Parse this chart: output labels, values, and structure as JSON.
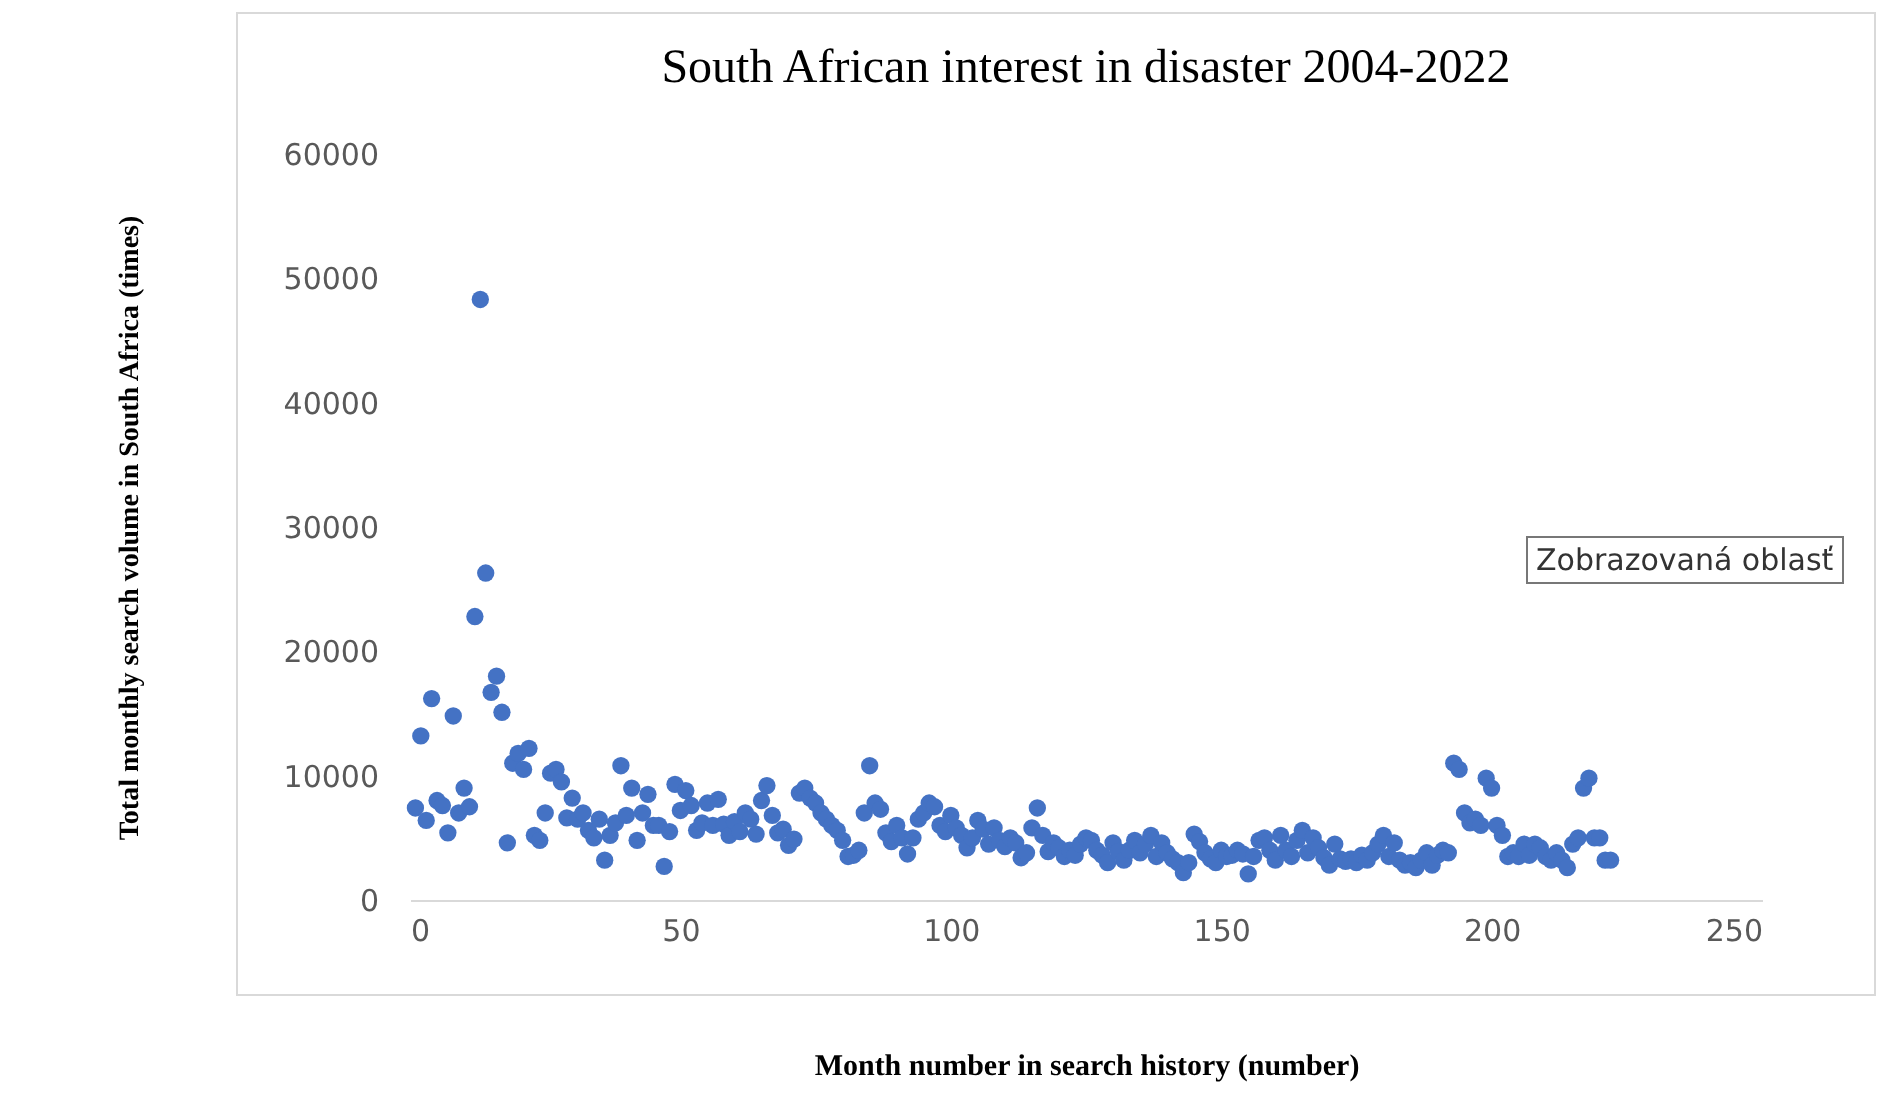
{
  "chart_data": {
    "type": "scatter",
    "title": "South African interest in disaster 2004-2022",
    "xlabel": "Month number in search history (number)",
    "ylabel": "Total monthly search volume in South Africa (times)",
    "annotations": [
      "Zobrazovaná oblasť"
    ],
    "x": [
      1,
      2,
      3,
      4,
      5,
      6,
      7,
      8,
      9,
      10,
      11,
      12,
      13,
      14,
      15,
      16,
      17,
      18,
      19,
      20,
      21,
      22,
      23,
      24,
      25,
      26,
      27,
      28,
      29,
      30,
      31,
      32,
      33,
      34,
      35,
      36,
      37,
      38,
      39,
      40,
      41,
      42,
      43,
      44,
      45,
      46,
      47,
      48,
      49,
      50,
      51,
      52,
      53,
      54,
      55,
      56,
      57,
      58,
      59,
      60,
      61,
      62,
      63,
      64,
      65,
      66,
      67,
      68,
      69,
      70,
      71,
      72,
      73,
      74,
      75,
      76,
      77,
      78,
      79,
      80,
      81,
      82,
      83,
      84,
      85,
      86,
      87,
      88,
      89,
      90,
      91,
      92,
      93,
      94,
      95,
      96,
      97,
      98,
      99,
      100,
      101,
      102,
      103,
      104,
      105,
      106,
      107,
      108,
      109,
      110,
      111,
      112,
      113,
      114,
      115,
      116,
      117,
      118,
      119,
      120,
      121,
      122,
      123,
      124,
      125,
      126,
      127,
      128,
      129,
      130,
      131,
      132,
      133,
      134,
      135,
      136,
      137,
      138,
      139,
      140,
      141,
      142,
      143,
      144,
      145,
      146,
      147,
      148,
      149,
      150,
      151,
      152,
      153,
      154,
      155,
      156,
      157,
      158,
      159,
      160,
      161,
      162,
      163,
      164,
      165,
      166,
      167,
      168,
      169,
      170,
      171,
      172,
      173,
      174,
      175,
      176,
      177,
      178,
      179,
      180,
      181,
      182,
      183,
      184,
      185,
      186,
      187,
      188,
      189,
      190,
      191,
      192,
      193,
      194,
      195,
      196,
      197,
      198,
      199,
      200,
      201,
      202,
      203,
      204,
      205,
      206,
      207,
      208,
      209,
      210,
      211,
      212,
      213,
      214,
      215,
      216,
      217,
      218,
      219,
      220,
      221,
      222
    ],
    "series": [
      {
        "color": "#4472c4",
        "values": [
          7400,
          13200,
          6400,
          16200,
          8000,
          7600,
          5400,
          14800,
          7000,
          9000,
          7500,
          22800,
          48300,
          26300,
          16700,
          18000,
          15100,
          4600,
          11000,
          11800,
          10500,
          12200,
          5200,
          4800,
          7000,
          10200,
          10500,
          9500,
          6600,
          8200,
          6500,
          7000,
          5600,
          5000,
          6500,
          3200,
          5200,
          6200,
          10800,
          6800,
          9000,
          4800,
          7000,
          8500,
          6000,
          6000,
          2700,
          5500,
          9300,
          7200,
          8800,
          7600,
          5600,
          6200,
          7800,
          6000,
          8100,
          6100,
          5200,
          6300,
          5500,
          7000,
          6500,
          5300,
          8000,
          9200,
          6800,
          5400,
          5700,
          4400,
          4900,
          8600,
          9000,
          8200,
          7800,
          7000,
          6500,
          6000,
          5600,
          4800,
          3500,
          3600,
          4000,
          7000,
          10800,
          7800,
          7300,
          5400,
          4700,
          6000,
          5000,
          3700,
          5000,
          6500,
          7000,
          7800,
          7500,
          6000,
          5500,
          6800,
          5800,
          5200,
          4200,
          5000,
          6400,
          5700,
          4500,
          5800,
          4800,
          4300,
          5000,
          4600,
          3400,
          3800,
          5800,
          7400,
          5200,
          3900,
          4600,
          4200,
          3500,
          4000,
          3600,
          4500,
          5000,
          4800,
          4000,
          3600,
          3000,
          4600,
          3900,
          3200,
          4000,
          4800,
          3800,
          4500,
          5200,
          3500,
          4600,
          3800,
          3300,
          3000,
          2200,
          3000,
          5300,
          4700,
          3800,
          3300,
          3000,
          4000,
          3500,
          3600,
          4000,
          3700,
          2100,
          3500,
          4800,
          5000,
          4000,
          3200,
          5200,
          4000,
          3500,
          4800,
          5600,
          3800,
          5000,
          4200,
          3400,
          2800,
          4500,
          3300,
          3100,
          3300,
          3000,
          3600,
          3200,
          3800,
          4500,
          5200,
          3500,
          4600,
          3200,
          2800,
          3000,
          2600,
          3200,
          3800,
          2800,
          3600,
          4000,
          3800,
          11000,
          10500,
          7000,
          6200,
          6500,
          6000,
          9800,
          9000,
          6000,
          5200,
          3500,
          3800,
          3500,
          4500,
          3600,
          4500,
          4200,
          3500,
          3200,
          3800,
          3200,
          2600,
          4500,
          5000,
          9000,
          9800,
          5000,
          5000,
          3200,
          3200
        ]
      }
    ],
    "xlim": [
      0,
      250
    ],
    "xticks": [
      0,
      50,
      100,
      150,
      200,
      250
    ],
    "ylim": [
      0,
      60000
    ],
    "yticks": [
      0,
      10000,
      20000,
      30000,
      40000,
      50000,
      60000
    ],
    "marker": "circle"
  }
}
